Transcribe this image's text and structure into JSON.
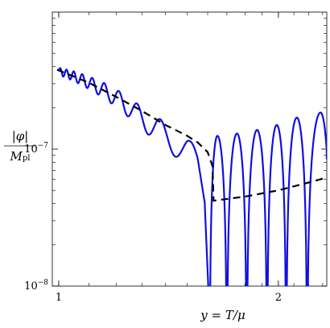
{
  "chart_data": {
    "type": "line",
    "title": "",
    "xlabel_parts": [
      "y = T/",
      "μ"
    ],
    "ylabel": {
      "numerator": "|φ|",
      "denominator_main": "M",
      "denominator_sub": "pl"
    },
    "x_scale": "log",
    "y_scale": "log",
    "xlim": [
      0.98,
      2.33
    ],
    "ylim": [
      1e-08,
      1e-06
    ],
    "x_ticks": [
      {
        "value": 1,
        "label": "1"
      },
      {
        "value": 2,
        "label": "2"
      }
    ],
    "y_ticks": [
      {
        "value": 1e-07,
        "label_base": "10",
        "label_exp": "−7"
      },
      {
        "value": 1e-08,
        "label_base": "10",
        "label_exp": "−8"
      }
    ],
    "grid": false,
    "legend": "none",
    "colors": {
      "oscillating": "#1010e0",
      "dashed": "#000000"
    },
    "series": [
      {
        "style": "solid",
        "color": "#1010e0",
        "envelope": {
          "x": [
            1.0,
            1.05,
            1.1,
            1.15,
            1.2,
            1.25,
            1.3,
            1.35,
            1.4,
            1.45,
            1.5,
            1.55,
            1.585
          ],
          "y": [
            3.7e-07,
            3.4e-07,
            3.05e-07,
            2.7e-07,
            2.35e-07,
            2e-07,
            1.68e-07,
            1.45e-07,
            1.25e-07,
            1.1e-07,
            9.5e-08,
            7.5e-08,
            4.8e-08
          ]
        },
        "oscillation_periods_log": [
          0.018,
          0.048
        ],
        "peaks_after_drop": {
          "x": [
            1.65,
            1.755,
            1.87,
            1.99,
            2.12,
            2.285
          ],
          "y": [
            1.25e-07,
            1.3e-07,
            1.38e-07,
            1.5e-07,
            1.7e-07,
            1.85e-07
          ]
        },
        "zeros_after_drop": [
          1.61,
          1.7,
          1.81,
          1.93,
          2.05,
          2.19
        ]
      },
      {
        "style": "dashed",
        "color": "#000000",
        "x": [
          0.995,
          1.1,
          1.2,
          1.3,
          1.4,
          1.5,
          1.55,
          1.6,
          1.625,
          1.63,
          1.8,
          2.0,
          2.2,
          2.33
        ],
        "y": [
          3.8e-07,
          3.05e-07,
          2.4e-07,
          1.9e-07,
          1.5e-07,
          1.25e-07,
          1.12e-07,
          9.5e-08,
          7.5e-08,
          4.2e-08,
          4.5e-08,
          5e-08,
          5.7e-08,
          6.2e-08
        ]
      }
    ]
  }
}
